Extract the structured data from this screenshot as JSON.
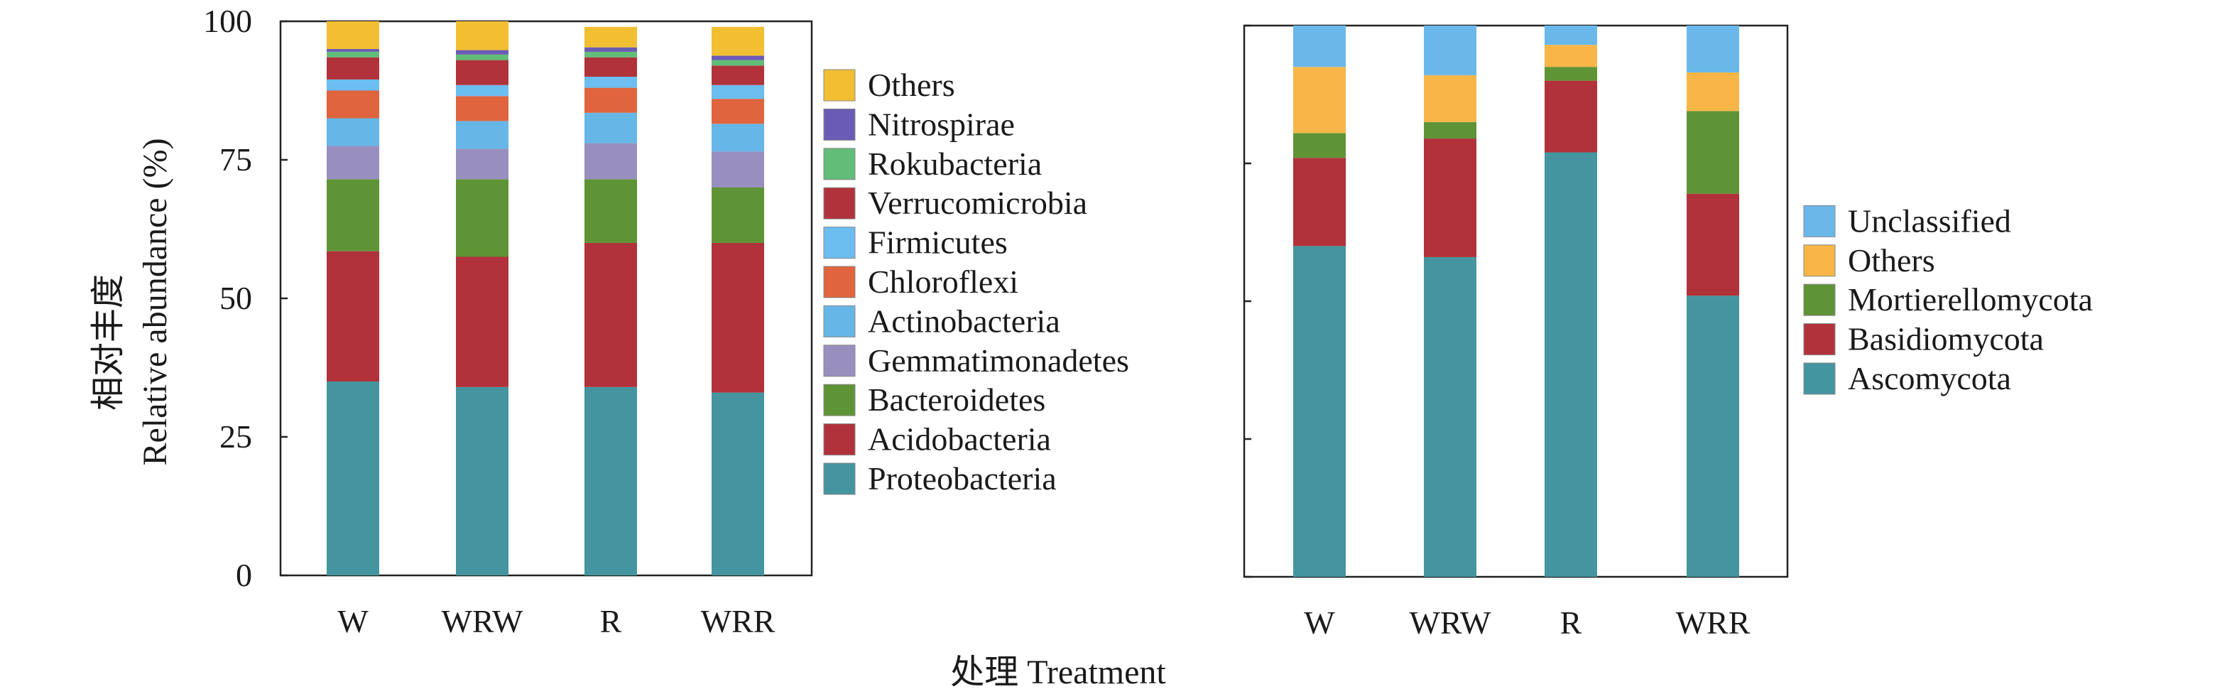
{
  "ylabel_cn": "相对丰度",
  "ylabel_en": "Relative abundance (%)",
  "xlabel": "处理 Treatment",
  "chart_data": [
    {
      "type": "bar",
      "stacked": true,
      "panel": "bacteria",
      "categories": [
        "W",
        "WRW",
        "R",
        "WRR"
      ],
      "ylim": [
        0,
        100
      ],
      "yticks": [
        0,
        25,
        50,
        75,
        100
      ],
      "grid": false,
      "legend_position": "right",
      "series": [
        {
          "name": "Proteobacteria",
          "color": "#44959f",
          "values": [
            35,
            34,
            34,
            33
          ]
        },
        {
          "name": "Acidobacteria",
          "color": "#b1323a",
          "values": [
            23.5,
            23.5,
            26,
            27
          ]
        },
        {
          "name": "Bacteroidetes",
          "color": "#5f9436",
          "values": [
            13,
            14,
            11.5,
            10
          ]
        },
        {
          "name": "Gemmatimonadetes",
          "color": "#998fbf",
          "values": [
            6,
            5.5,
            6.5,
            6.5
          ]
        },
        {
          "name": "Actinobacteria",
          "color": "#66b7e8",
          "values": [
            5,
            5,
            5.5,
            5
          ]
        },
        {
          "name": "Chloroflexi",
          "color": "#e0643d",
          "values": [
            5,
            4.5,
            4.5,
            4.5
          ]
        },
        {
          "name": "Firmicutes",
          "color": "#6cbdf0",
          "values": [
            2,
            2,
            2,
            2.5
          ]
        },
        {
          "name": "Verrucomicrobia",
          "color": "#b1323a",
          "values": [
            4,
            4.5,
            3.5,
            3.5
          ]
        },
        {
          "name": "Rokubacteria",
          "color": "#61bd77",
          "values": [
            1,
            1,
            1,
            1
          ]
        },
        {
          "name": "Nitrospirae",
          "color": "#6a5bb4",
          "values": [
            0.5,
            0.8,
            0.8,
            0.8
          ]
        },
        {
          "name": "Others",
          "color": "#f2bf33",
          "values": [
            5,
            5.2,
            3.7,
            5.2
          ]
        }
      ]
    },
    {
      "type": "bar",
      "stacked": true,
      "panel": "fungi",
      "categories": [
        "W",
        "WRW",
        "R",
        "WRR"
      ],
      "ylim": [
        0,
        100
      ],
      "grid": false,
      "legend_position": "right",
      "series": [
        {
          "name": "Ascomycota",
          "color": "#44959f",
          "values": [
            60,
            58,
            77,
            51
          ]
        },
        {
          "name": "Basidiomycota",
          "color": "#b1323a",
          "values": [
            16,
            21.5,
            13,
            18.5
          ]
        },
        {
          "name": "Mortierellomycota",
          "color": "#5f9436",
          "values": [
            4.5,
            3,
            2.5,
            15
          ]
        },
        {
          "name": "Others",
          "color": "#f8b648",
          "values": [
            12,
            8.5,
            4,
            7
          ]
        },
        {
          "name": "Unclassified",
          "color": "#6ab8ea",
          "values": [
            7.5,
            9,
            3.5,
            8.5
          ]
        }
      ]
    }
  ]
}
